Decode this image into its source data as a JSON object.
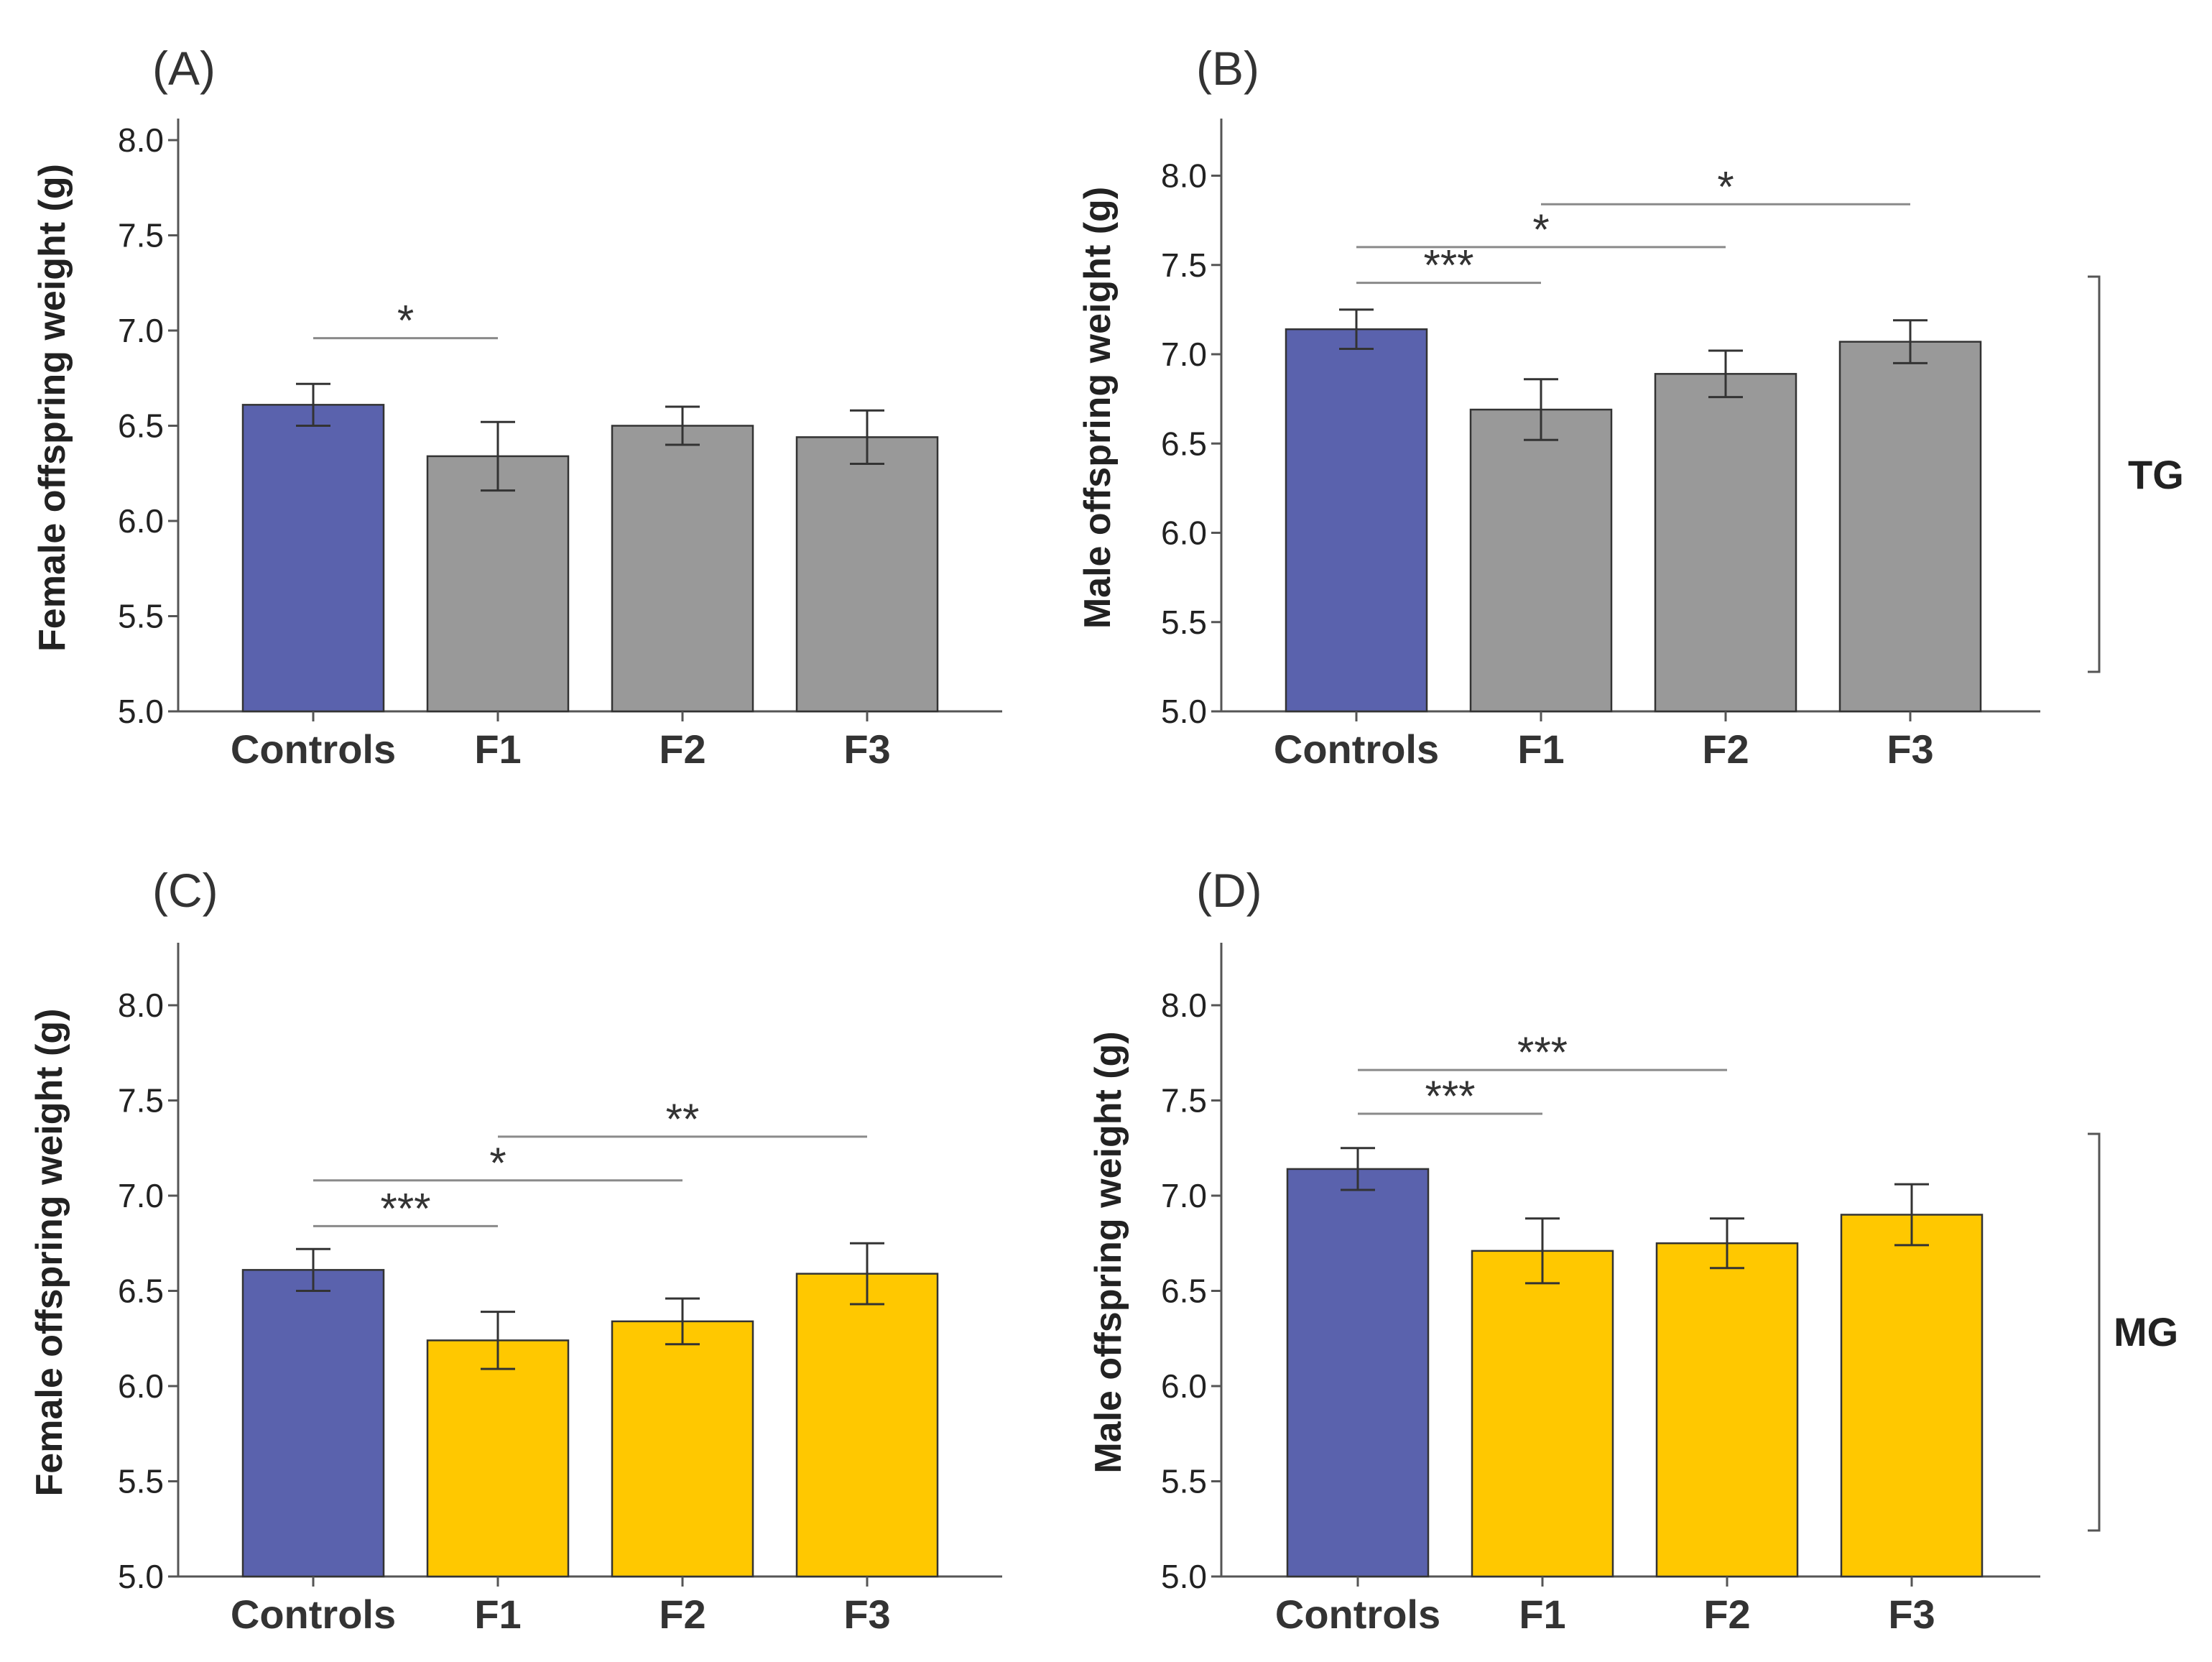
{
  "colors": {
    "controls": "#5a62ad",
    "tg": "#999999",
    "mg": "#ffc800"
  },
  "group_labels": {
    "tg": "TG",
    "mg": "MG"
  },
  "chart_data": [
    {
      "type": "bar",
      "panel": "(A)",
      "ylabel": "Female offspring weight (g)",
      "ylim": [
        5.0,
        8.0
      ],
      "yticks": [
        "5.0",
        "5.5",
        "6.0",
        "6.5",
        "7.0",
        "7.5",
        "8.0"
      ],
      "categories": [
        "Controls",
        "F1",
        "F2",
        "F3"
      ],
      "values": [
        6.61,
        6.34,
        6.5,
        6.44
      ],
      "errors": [
        0.11,
        0.18,
        0.1,
        0.14
      ],
      "bar_colors": [
        "controls",
        "tg",
        "tg",
        "tg"
      ],
      "significance": [
        {
          "from": 0,
          "to": 1,
          "label": "*",
          "y": 6.96
        }
      ]
    },
    {
      "type": "bar",
      "panel": "(B)",
      "ylabel": "Male offspring weight (g)",
      "ylim": [
        5.0,
        8.3
      ],
      "yticks": [
        "5.0",
        "5.5",
        "6.0",
        "6.5",
        "7.0",
        "7.5",
        "8.0"
      ],
      "categories": [
        "Controls",
        "F1",
        "F2",
        "F3"
      ],
      "values": [
        7.14,
        6.69,
        6.89,
        7.07
      ],
      "errors": [
        0.11,
        0.17,
        0.13,
        0.12
      ],
      "bar_colors": [
        "controls",
        "tg",
        "tg",
        "tg"
      ],
      "significance": [
        {
          "from": 0,
          "to": 1,
          "label": "***",
          "y": 7.4
        },
        {
          "from": 0,
          "to": 2,
          "label": "*",
          "y": 7.6
        },
        {
          "from": 1,
          "to": 3,
          "label": "*",
          "y": 7.84
        }
      ]
    },
    {
      "type": "bar",
      "panel": "(C)",
      "ylabel": "Female offspring weight (g)",
      "ylim": [
        5.0,
        8.3
      ],
      "yticks": [
        "5.0",
        "5.5",
        "6.0",
        "6.5",
        "7.0",
        "7.5",
        "8.0"
      ],
      "categories": [
        "Controls",
        "F1",
        "F2",
        "F3"
      ],
      "values": [
        6.61,
        6.24,
        6.34,
        6.59
      ],
      "errors": [
        0.11,
        0.15,
        0.12,
        0.16
      ],
      "bar_colors": [
        "controls",
        "mg",
        "mg",
        "mg"
      ],
      "significance": [
        {
          "from": 0,
          "to": 1,
          "label": "***",
          "y": 6.84
        },
        {
          "from": 0,
          "to": 2,
          "label": "*",
          "y": 7.08
        },
        {
          "from": 1,
          "to": 3,
          "label": "**",
          "y": 7.31
        }
      ]
    },
    {
      "type": "bar",
      "panel": "(D)",
      "ylabel": "Male offspring weight (g)",
      "ylim": [
        5.0,
        8.3
      ],
      "yticks": [
        "5.0",
        "5.5",
        "6.0",
        "6.5",
        "7.0",
        "7.5",
        "8.0"
      ],
      "categories": [
        "Controls",
        "F1",
        "F2",
        "F3"
      ],
      "values": [
        7.14,
        6.71,
        6.75,
        6.9
      ],
      "errors": [
        0.11,
        0.17,
        0.13,
        0.16
      ],
      "bar_colors": [
        "controls",
        "mg",
        "mg",
        "mg"
      ],
      "significance": [
        {
          "from": 0,
          "to": 1,
          "label": "***",
          "y": 7.43
        },
        {
          "from": 0,
          "to": 2,
          "label": "***",
          "y": 7.66
        }
      ]
    }
  ]
}
